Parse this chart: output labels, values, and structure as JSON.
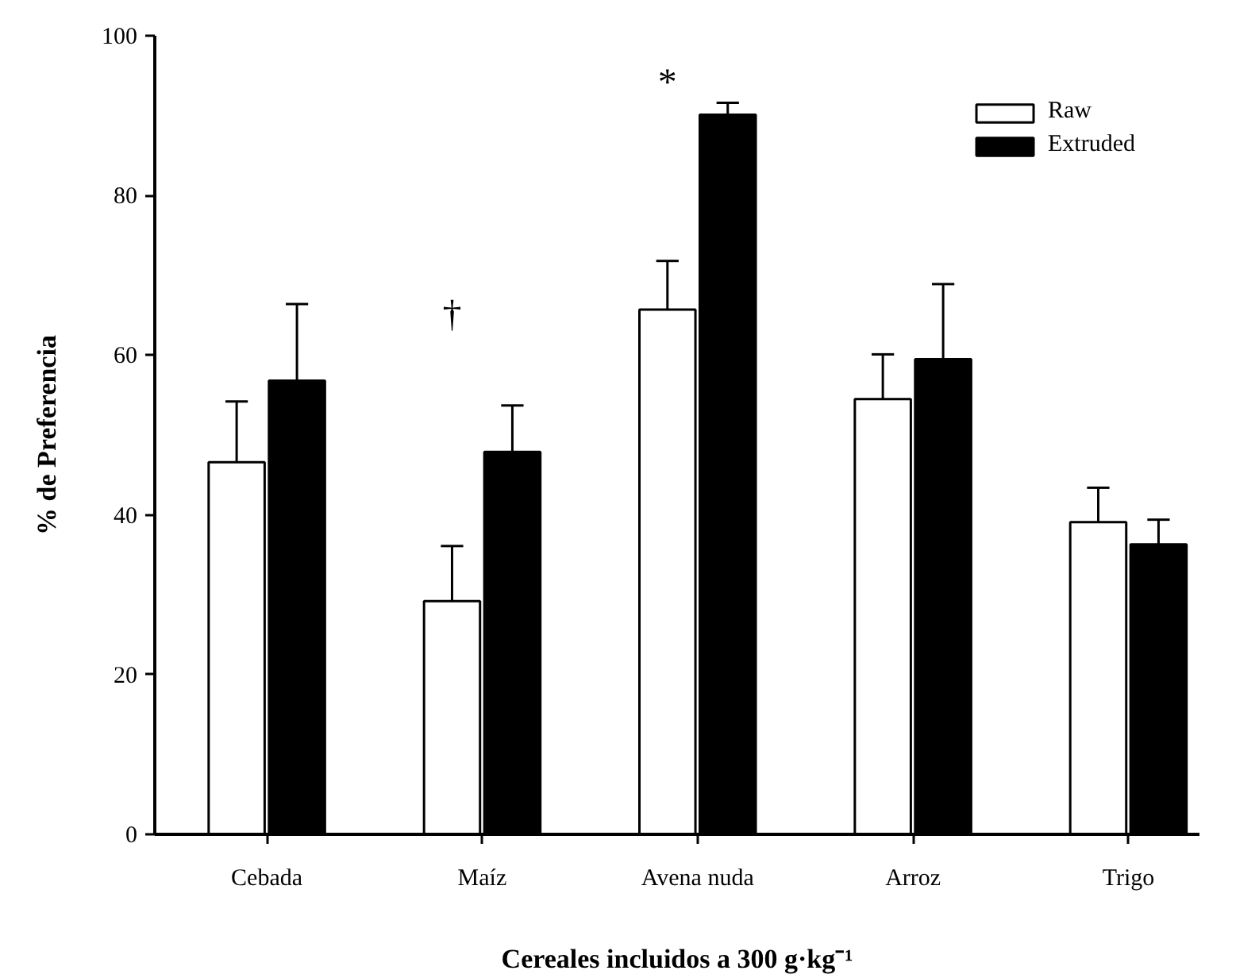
{
  "chart_data": {
    "type": "bar",
    "xlabel": "Cereales incluidos a 300 g·kg⁻¹",
    "ylabel": "% de Preferencia",
    "categories": [
      "Cebada",
      "Maíz",
      "Avena nuda",
      "Arroz",
      "Trigo"
    ],
    "series": [
      {
        "name": "Raw",
        "color": "#ffffff",
        "values": [
          46.6,
          29.2,
          65.7,
          54.5,
          39.1
        ],
        "errors": [
          7.6,
          6.9,
          6.1,
          5.6,
          4.3
        ]
      },
      {
        "name": "Extruded",
        "color": "#000000",
        "values": [
          56.8,
          47.9,
          90.1,
          59.5,
          36.3
        ],
        "errors": [
          9.6,
          5.8,
          1.5,
          9.4,
          3.1
        ]
      }
    ],
    "ylim": [
      0,
      100
    ],
    "yticks": [
      0,
      20,
      40,
      60,
      80,
      100
    ],
    "grid": false,
    "legend": "top right",
    "annotations": [
      "†",
      "*"
    ]
  }
}
